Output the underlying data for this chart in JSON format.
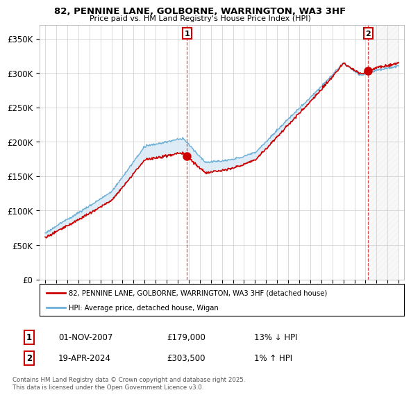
{
  "title": "82, PENNINE LANE, GOLBORNE, WARRINGTON, WA3 3HF",
  "subtitle": "Price paid vs. HM Land Registry's House Price Index (HPI)",
  "ylim": [
    0,
    370000
  ],
  "yticks": [
    0,
    50000,
    100000,
    150000,
    200000,
    250000,
    300000,
    350000
  ],
  "ytick_labels": [
    "£0",
    "£50K",
    "£100K",
    "£150K",
    "£200K",
    "£250K",
    "£300K",
    "£350K"
  ],
  "sale1_date": "01-NOV-2007",
  "sale1_price": 179000,
  "sale1_label": "13% ↓ HPI",
  "sale2_date": "19-APR-2024",
  "sale2_price": 303500,
  "sale2_label": "1% ↑ HPI",
  "legend_line1": "82, PENNINE LANE, GOLBORNE, WARRINGTON, WA3 3HF (detached house)",
  "legend_line2": "HPI: Average price, detached house, Wigan",
  "copyright": "Contains HM Land Registry data © Crown copyright and database right 2025.\nThis data is licensed under the Open Government Licence v3.0.",
  "hpi_color": "#6baed6",
  "price_color": "#cc0000",
  "background_color": "#ffffff",
  "grid_color": "#cccccc",
  "fill_color": "#d6e8f5",
  "sale1_x": 2007.833,
  "sale2_x": 2024.25,
  "xlim_left": 1994.5,
  "xlim_right": 2027.5
}
